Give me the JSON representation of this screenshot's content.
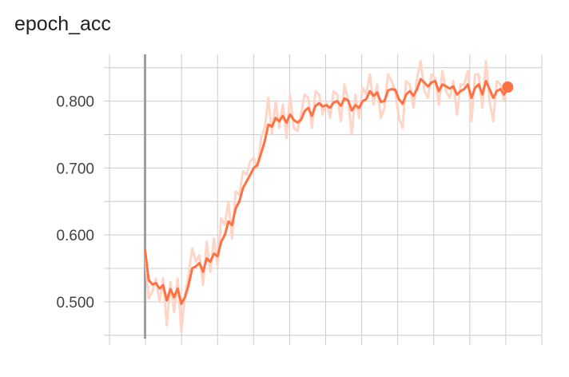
{
  "chart_data": {
    "type": "line",
    "title": "epoch_acc",
    "xlabel": "",
    "ylabel": "",
    "xlim": [
      -9.8,
      109.4
    ],
    "ylim": [
      0.445,
      0.87
    ],
    "ytick_values": [
      0.5,
      0.6,
      0.7,
      0.8
    ],
    "ytick_labels": [
      "0.500",
      "0.600",
      "0.700",
      "0.800"
    ],
    "grid": true,
    "colors": {
      "smoothed": "#ff7043",
      "raw": "#ffd5c7",
      "grid": "#cccccc",
      "axis": "#9e9e9e",
      "start_marker": "#9e9e9e"
    },
    "series": [
      {
        "x": [
          0,
          1,
          2,
          3,
          4,
          5,
          6,
          7,
          8,
          9,
          10,
          11,
          12,
          13,
          14,
          15,
          16,
          17,
          18,
          19,
          20,
          21,
          22,
          23,
          24,
          25,
          26,
          27,
          28,
          29,
          30,
          31,
          32,
          33,
          34,
          35,
          36,
          37,
          38,
          39,
          40,
          41,
          42,
          43,
          44,
          45,
          46,
          47,
          48,
          49,
          50,
          51,
          52,
          53,
          54,
          55,
          56,
          57,
          58,
          59,
          60,
          61,
          62,
          63,
          64,
          65,
          66,
          67,
          68,
          69,
          70,
          71,
          72,
          73,
          74,
          75,
          76,
          77,
          78,
          79,
          80,
          81,
          82,
          83,
          84,
          85,
          86,
          87,
          88,
          89,
          90,
          91,
          92,
          93,
          94,
          95,
          96,
          97,
          98,
          99,
          100
        ],
        "smoothed": [
          0.578,
          0.533,
          0.526,
          0.528,
          0.52,
          0.525,
          0.502,
          0.519,
          0.507,
          0.52,
          0.497,
          0.507,
          0.525,
          0.55,
          0.553,
          0.558,
          0.545,
          0.565,
          0.56,
          0.572,
          0.568,
          0.59,
          0.6,
          0.62,
          0.615,
          0.64,
          0.65,
          0.67,
          0.68,
          0.69,
          0.7,
          0.705,
          0.722,
          0.74,
          0.765,
          0.762,
          0.775,
          0.77,
          0.778,
          0.768,
          0.78,
          0.772,
          0.768,
          0.772,
          0.785,
          0.79,
          0.778,
          0.793,
          0.797,
          0.792,
          0.794,
          0.79,
          0.798,
          0.8,
          0.793,
          0.804,
          0.801,
          0.786,
          0.794,
          0.79,
          0.8,
          0.803,
          0.815,
          0.808,
          0.813,
          0.799,
          0.8,
          0.816,
          0.818,
          0.817,
          0.803,
          0.796,
          0.81,
          0.815,
          0.808,
          0.818,
          0.833,
          0.828,
          0.822,
          0.828,
          0.83,
          0.815,
          0.825,
          0.822,
          0.819,
          0.822,
          0.81,
          0.815,
          0.818,
          0.825,
          0.805,
          0.82,
          0.825,
          0.81,
          0.83,
          0.818,
          0.805,
          0.815,
          0.818,
          0.81,
          0.821
        ],
        "raw": [
          0.578,
          0.505,
          0.515,
          0.535,
          0.5,
          0.535,
          0.465,
          0.53,
          0.485,
          0.535,
          0.455,
          0.51,
          0.54,
          0.58,
          0.56,
          0.57,
          0.525,
          0.59,
          0.545,
          0.595,
          0.555,
          0.625,
          0.615,
          0.65,
          0.595,
          0.665,
          0.66,
          0.695,
          0.69,
          0.71,
          0.715,
          0.7,
          0.745,
          0.76,
          0.805,
          0.75,
          0.8,
          0.76,
          0.795,
          0.745,
          0.81,
          0.76,
          0.755,
          0.78,
          0.81,
          0.805,
          0.76,
          0.815,
          0.81,
          0.78,
          0.8,
          0.775,
          0.815,
          0.81,
          0.77,
          0.825,
          0.8,
          0.75,
          0.81,
          0.775,
          0.82,
          0.81,
          0.84,
          0.795,
          0.825,
          0.775,
          0.79,
          0.84,
          0.83,
          0.815,
          0.775,
          0.76,
          0.83,
          0.825,
          0.79,
          0.835,
          0.86,
          0.815,
          0.805,
          0.84,
          0.835,
          0.795,
          0.845,
          0.815,
          0.805,
          0.83,
          0.78,
          0.825,
          0.825,
          0.845,
          0.77,
          0.84,
          0.84,
          0.79,
          0.86,
          0.8,
          0.77,
          0.83,
          0.825,
          0.8,
          0.83
        ]
      }
    ]
  }
}
